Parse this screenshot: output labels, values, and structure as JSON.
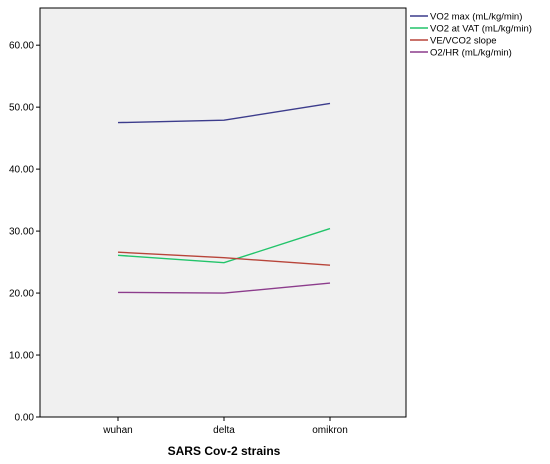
{
  "chart_data": {
    "type": "line",
    "categories": [
      "wuhan",
      "delta",
      "omikron"
    ],
    "series": [
      {
        "name": "VO2 max (mL/kg/min)",
        "color": "#3c3c8c",
        "values": [
          47.5,
          47.9,
          50.6
        ]
      },
      {
        "name": "VO2 at VAT (mL/kg/min)",
        "color": "#22c46a",
        "values": [
          26.1,
          24.9,
          30.4
        ]
      },
      {
        "name": "VE/VCO2 slope",
        "color": "#b8453a",
        "values": [
          26.6,
          25.7,
          24.5
        ]
      },
      {
        "name": "O2/HR (mL/kg/min)",
        "color": "#8c3c8c",
        "values": [
          20.1,
          20.0,
          21.6
        ]
      }
    ],
    "title": "",
    "xlabel": "SARS Cov-2 strains",
    "ylabel": "",
    "ylim": [
      0,
      66
    ],
    "yticks": [
      "0.00",
      "10.00",
      "20.00",
      "30.00",
      "40.00",
      "50.00",
      "60.00"
    ],
    "grid": false,
    "legend_position": "top-right",
    "plot_background": "#f0f0f0"
  }
}
